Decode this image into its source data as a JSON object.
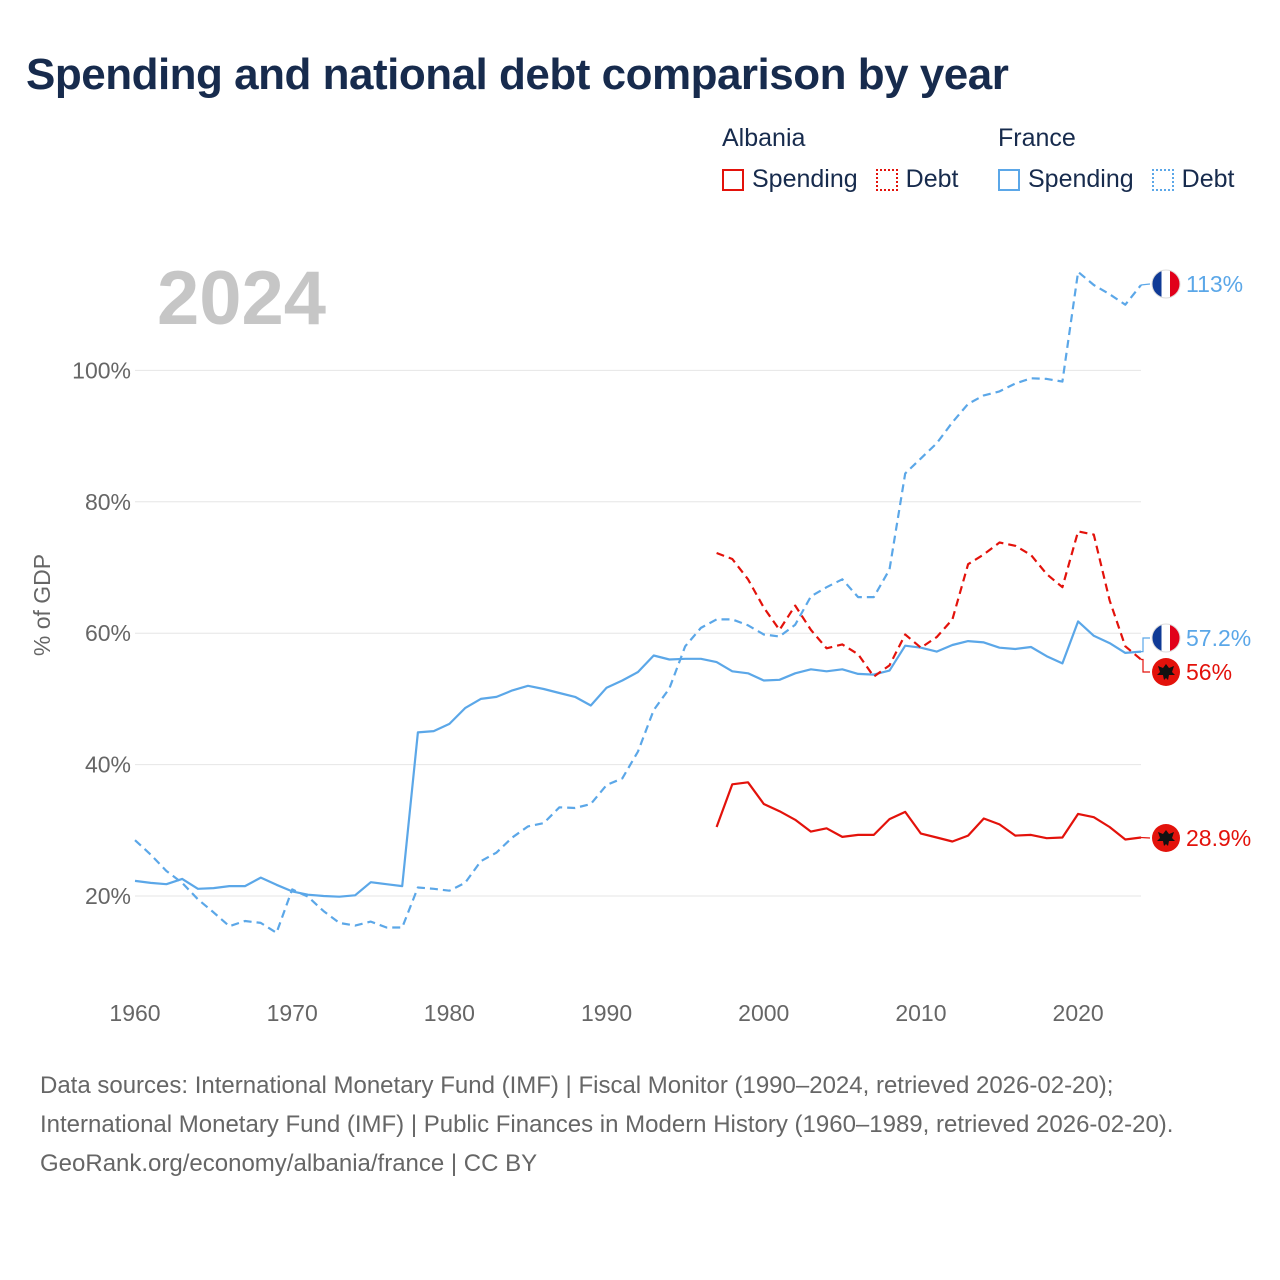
{
  "title": "Spending and national debt comparison by year",
  "colors": {
    "albania": "#e3120b",
    "france": "#5ba7e8",
    "title": "#172b4d",
    "axis_text": "#666666",
    "grid": "#e6e6e6",
    "year_watermark": "#c6c6c6"
  },
  "legend": {
    "albania": {
      "country": "Albania",
      "spending": "Spending",
      "debt": "Debt"
    },
    "france": {
      "country": "France",
      "spending": "Spending",
      "debt": "Debt"
    }
  },
  "chart_data": {
    "type": "line",
    "current_year": "2024",
    "ylabel": "% of GDP",
    "xlim": [
      1959,
      2024
    ],
    "ylim": [
      10,
      120
    ],
    "x_ticks": [
      1960,
      1970,
      1980,
      1990,
      2000,
      2010,
      2020
    ],
    "x_tick_labels": [
      "1960",
      "1970",
      "1980",
      "1990",
      "2000",
      "2010",
      "2020"
    ],
    "y_ticks": [
      20,
      40,
      60,
      80,
      100
    ],
    "y_tick_labels": [
      "20%",
      "40%",
      "60%",
      "80%",
      "100%"
    ],
    "series": [
      {
        "id": "france-spending",
        "name": "France Spending",
        "country": "France",
        "style": "solid",
        "end_label": "57.2%",
        "flag": "france",
        "x": [
          1960,
          1961,
          1962,
          1963,
          1964,
          1965,
          1966,
          1967,
          1968,
          1969,
          1970,
          1971,
          1972,
          1973,
          1974,
          1975,
          1976,
          1977,
          1978,
          1979,
          1980,
          1981,
          1982,
          1983,
          1984,
          1985,
          1986,
          1987,
          1988,
          1989,
          1990,
          1991,
          1992,
          1993,
          1994,
          1995,
          1996,
          1997,
          1998,
          1999,
          2000,
          2001,
          2002,
          2003,
          2004,
          2005,
          2006,
          2007,
          2008,
          2009,
          2010,
          2011,
          2012,
          2013,
          2014,
          2015,
          2016,
          2017,
          2018,
          2019,
          2020,
          2021,
          2022,
          2023,
          2024
        ],
        "y": [
          22.3,
          22.0,
          21.8,
          22.6,
          21.1,
          21.2,
          21.5,
          21.5,
          22.8,
          21.7,
          20.7,
          20.2,
          20.0,
          19.9,
          20.1,
          22.1,
          21.8,
          21.5,
          44.9,
          45.1,
          46.2,
          48.6,
          50.0,
          50.3,
          51.3,
          52.0,
          51.5,
          50.9,
          50.3,
          49.0,
          51.7,
          52.8,
          54.1,
          56.6,
          56.0,
          56.1,
          56.1,
          55.6,
          54.2,
          53.9,
          52.8,
          52.9,
          53.9,
          54.5,
          54.2,
          54.5,
          53.8,
          53.7,
          54.3,
          58.1,
          57.8,
          57.2,
          58.2,
          58.8,
          58.6,
          57.8,
          57.6,
          57.9,
          56.5,
          55.4,
          61.8,
          59.6,
          58.5,
          57.0,
          57.2
        ]
      },
      {
        "id": "france-debt",
        "name": "France Debt",
        "country": "France",
        "style": "dashed",
        "end_label": "113%",
        "flag": "france",
        "x": [
          1960,
          1961,
          1962,
          1963,
          1964,
          1965,
          1966,
          1967,
          1968,
          1969,
          1970,
          1971,
          1972,
          1973,
          1974,
          1975,
          1976,
          1977,
          1978,
          1979,
          1980,
          1981,
          1982,
          1983,
          1984,
          1985,
          1986,
          1987,
          1988,
          1989,
          1990,
          1991,
          1992,
          1993,
          1994,
          1995,
          1996,
          1997,
          1998,
          1999,
          2000,
          2001,
          2002,
          2003,
          2004,
          2005,
          2006,
          2007,
          2008,
          2009,
          2010,
          2011,
          2012,
          2013,
          2014,
          2015,
          2016,
          2017,
          2018,
          2019,
          2020,
          2021,
          2022,
          2023,
          2024
        ],
        "y": [
          28.5,
          26.3,
          23.8,
          22.0,
          19.5,
          17.5,
          15.4,
          16.2,
          15.9,
          14.4,
          21.0,
          19.9,
          17.7,
          15.9,
          15.5,
          16.1,
          15.2,
          15.2,
          21.3,
          21.1,
          20.8,
          22.0,
          25.3,
          26.6,
          28.9,
          30.6,
          31.1,
          33.5,
          33.4,
          34.0,
          36.9,
          37.9,
          42.0,
          48.3,
          51.6,
          58.0,
          60.8,
          62.1,
          62.1,
          61.2,
          59.8,
          59.5,
          61.3,
          65.6,
          67.0,
          68.2,
          65.5,
          65.5,
          69.7,
          84.3,
          86.6,
          88.9,
          92.1,
          94.9,
          96.2,
          96.8,
          98.0,
          98.8,
          98.7,
          98.3,
          115.0,
          113.0,
          111.6,
          110.0,
          113.0
        ]
      },
      {
        "id": "albania-spending",
        "name": "Albania Spending",
        "country": "Albania",
        "style": "solid",
        "end_label": "28.9%",
        "flag": "albania",
        "x": [
          1997,
          1998,
          1999,
          2000,
          2001,
          2002,
          2003,
          2004,
          2005,
          2006,
          2007,
          2008,
          2009,
          2010,
          2011,
          2012,
          2013,
          2014,
          2015,
          2016,
          2017,
          2018,
          2019,
          2020,
          2021,
          2022,
          2023,
          2024
        ],
        "y": [
          30.5,
          37.0,
          37.3,
          34.0,
          32.9,
          31.6,
          29.8,
          30.3,
          29.0,
          29.3,
          29.3,
          31.7,
          32.8,
          29.5,
          28.9,
          28.3,
          29.2,
          31.8,
          30.9,
          29.2,
          29.3,
          28.8,
          28.9,
          32.5,
          32.0,
          30.5,
          28.6,
          28.9
        ]
      },
      {
        "id": "albania-debt",
        "name": "Albania Debt",
        "country": "Albania",
        "style": "dashed",
        "end_label": "56%",
        "flag": "albania",
        "x": [
          1997,
          1998,
          1999,
          2000,
          2001,
          2002,
          2003,
          2004,
          2005,
          2006,
          2007,
          2008,
          2009,
          2010,
          2011,
          2012,
          2013,
          2014,
          2015,
          2016,
          2017,
          2018,
          2019,
          2020,
          2021,
          2022,
          2023,
          2024
        ],
        "y": [
          72.2,
          71.3,
          68.2,
          63.9,
          60.5,
          64.2,
          60.5,
          57.7,
          58.3,
          56.8,
          53.4,
          55.1,
          59.8,
          57.8,
          59.4,
          62.1,
          70.5,
          72.0,
          73.8,
          73.3,
          71.9,
          69.0,
          67.0,
          75.5,
          75.0,
          65.0,
          58.0,
          56.0
        ]
      }
    ]
  },
  "footer": {
    "source_text": "Data sources: International Monetary Fund (IMF) | Fiscal Monitor (1990–2024, retrieved 2026-02-20); International Monetary Fund (IMF) | Public Finances in Modern History (1960–1989, retrieved 2026-02-20).",
    "attribution": "GeoRank.org/economy/albania/france | CC BY"
  }
}
